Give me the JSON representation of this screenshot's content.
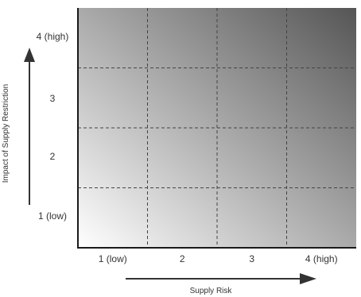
{
  "chart_data": {
    "type": "heatmap",
    "title": "",
    "xlabel": "Supply Risk",
    "ylabel": "Impact of Supply Restriction",
    "x_categories": [
      "1 (low)",
      "2",
      "3",
      "4 (high)"
    ],
    "y_categories": [
      "1 (low)",
      "2",
      "3",
      "4 (high)"
    ],
    "grid": "dashed",
    "gradient": {
      "light": "#ffffff",
      "dark": "#555555",
      "direction": "darkens toward top-right"
    }
  }
}
